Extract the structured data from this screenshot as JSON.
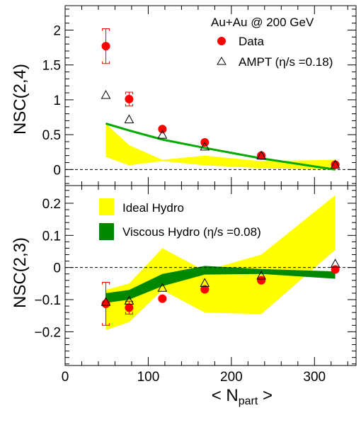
{
  "chart_data": [
    {
      "type": "scatter",
      "xlabel": "< N",
      "xlabel_sub": "part",
      "xlabel_end": " >",
      "ylabel": "NSC(2,4)",
      "xlim": [
        0,
        350
      ],
      "ylim": [
        -0.23,
        2.35
      ],
      "xticks": [
        "0",
        "100",
        "200",
        "300"
      ],
      "yticks": [
        "0",
        "0.5",
        "1",
        "1.5",
        "2"
      ],
      "legend": [
        "Au+Au @ 200 GeV",
        "Data",
        "AMPT (η/s =0.18)"
      ],
      "legend_position": "top-right",
      "series": [
        {
          "name": "Data",
          "color": "#ff0000",
          "marker": "circle",
          "x": [
            49,
            77,
            117,
            168,
            236,
            325
          ],
          "y": [
            1.77,
            1.01,
            0.58,
            0.39,
            0.2,
            0.07
          ],
          "syst": [
            0.25,
            0.1,
            0.03,
            0.03,
            0.02,
            0.02
          ]
        },
        {
          "name": "AMPT (η/s =0.18)",
          "color": "#000000",
          "marker": "open-triangle",
          "x": [
            49,
            77,
            117,
            168,
            236,
            325
          ],
          "y": [
            1.07,
            0.72,
            0.5,
            0.33,
            0.2,
            0.07
          ]
        },
        {
          "name": "Viscous Hydro (η/s =0.08)",
          "color": "#00aa00",
          "kind": "line",
          "x": [
            49,
            77,
            117,
            168,
            236,
            325
          ],
          "y": [
            0.66,
            0.56,
            0.43,
            0.31,
            0.16,
            0.0
          ]
        },
        {
          "name": "Ideal Hydro",
          "color": "#ffff00",
          "kind": "band",
          "x": [
            49,
            77,
            117,
            168,
            236,
            325
          ],
          "upper": [
            0.66,
            0.35,
            0.14,
            0.2,
            0.12,
            0.14
          ],
          "lower": [
            0.18,
            0.06,
            0.12,
            0.06,
            0.02,
            0.0
          ]
        }
      ]
    },
    {
      "type": "scatter",
      "xlabel": "< N",
      "xlabel_sub": "part",
      "xlabel_end": " >",
      "ylabel": "NSC(2,3)",
      "xlim": [
        0,
        350
      ],
      "ylim": [
        -0.305,
        0.255
      ],
      "xticks": [
        "0",
        "100",
        "200",
        "300"
      ],
      "yticks": [
        "−0.2",
        "−0.1",
        "0",
        "0.1",
        "0.2"
      ],
      "legend": [
        "Ideal Hydro",
        "Viscous Hydro (η/s =0.08)"
      ],
      "legend_position": "top-left",
      "series": [
        {
          "name": "Data",
          "color": "#ff0000",
          "marker": "circle",
          "x": [
            49,
            77,
            117,
            168,
            236,
            325
          ],
          "y": [
            -0.113,
            -0.125,
            -0.097,
            -0.068,
            -0.04,
            -0.006
          ],
          "syst": [
            0.067,
            0.02,
            0.005,
            0.005,
            0.004,
            0.004
          ]
        },
        {
          "name": "AMPT",
          "color": "#000000",
          "marker": "open-triangle",
          "x": [
            49,
            77,
            117,
            168,
            236,
            325
          ],
          "y": [
            -0.107,
            -0.103,
            -0.063,
            -0.048,
            -0.025,
            0.012
          ]
        },
        {
          "name": "Ideal Hydro",
          "color": "#ffff00",
          "kind": "band",
          "x": [
            49,
            77,
            117,
            168,
            236,
            325
          ],
          "upper": [
            -0.07,
            -0.05,
            0.06,
            -0.01,
            0.04,
            0.225
          ],
          "lower": [
            -0.195,
            -0.17,
            -0.07,
            -0.14,
            -0.145,
            0.055
          ]
        },
        {
          "name": "Viscous Hydro (η/s =0.08)",
          "color": "#008800",
          "kind": "band",
          "x": [
            49,
            77,
            117,
            168,
            236,
            325
          ],
          "upper": [
            -0.08,
            -0.07,
            -0.02,
            0.005,
            -0.005,
            -0.012
          ],
          "lower": [
            -0.11,
            -0.1,
            -0.058,
            -0.022,
            -0.02,
            -0.035
          ]
        }
      ]
    }
  ]
}
